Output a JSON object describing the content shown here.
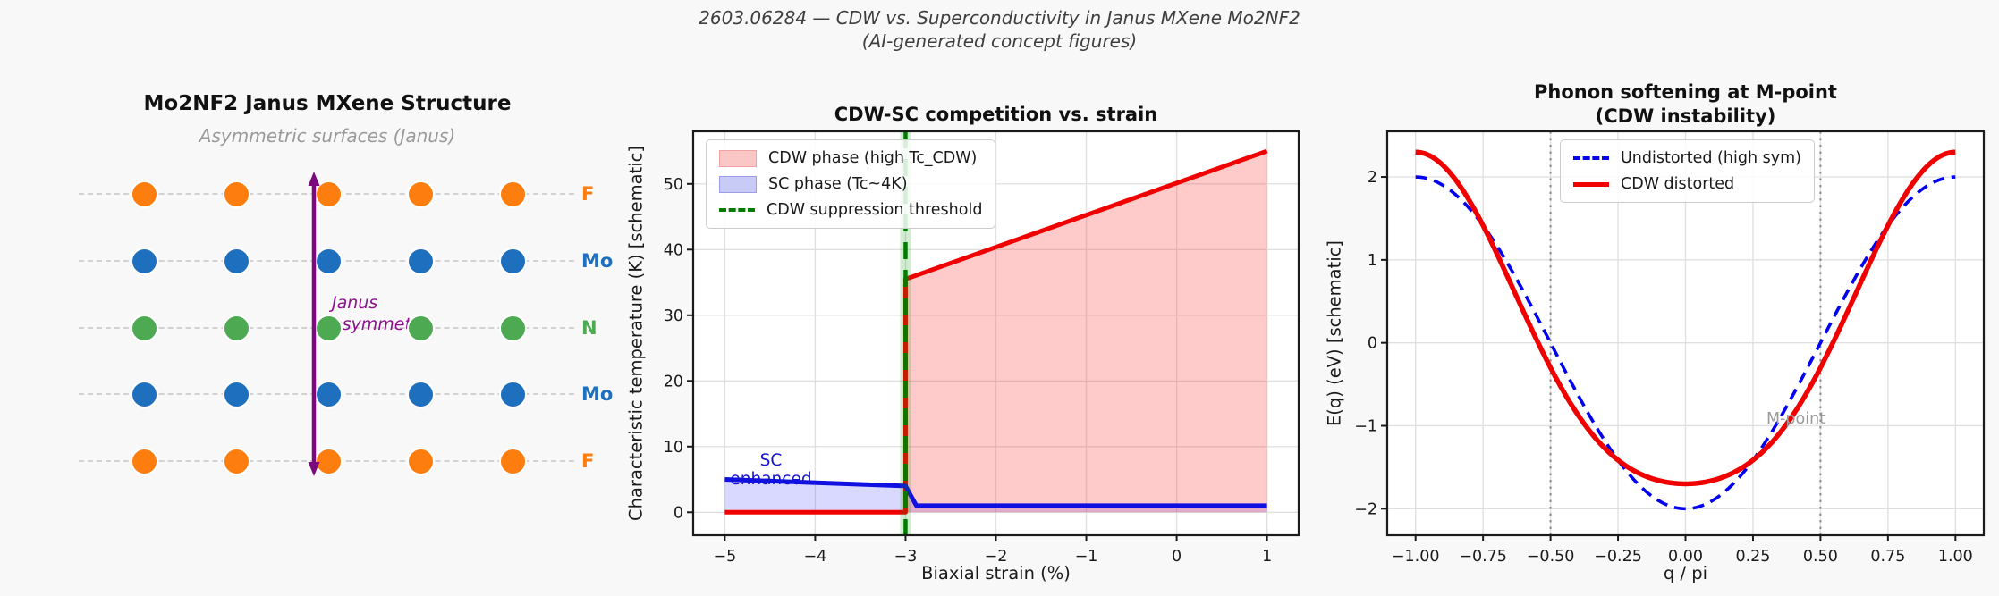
{
  "header": {
    "line1": "2603.06284 — CDW vs. Superconductivity in Janus MXene Mo2NF2",
    "line2": "(AI-generated concept figures)"
  },
  "structure_panel": {
    "title": "Mo2NF2 Janus MXene Structure",
    "subtitle": "Asymmetric surfaces (Janus)",
    "annotation_line1": "Janus",
    "annotation_line2": "asymmetry",
    "annotation_color": "#8d118d",
    "arrow_color": "#7c0a7c",
    "columns": 5,
    "rows": [
      {
        "label": "F",
        "color": "#fd7e0e"
      },
      {
        "label": "Mo",
        "color": "#1f6fbf"
      },
      {
        "label": "N",
        "color": "#4daa53"
      },
      {
        "label": "Mo",
        "color": "#1f6fbf"
      },
      {
        "label": "F",
        "color": "#fd7e0e"
      }
    ]
  },
  "chart_data": [
    {
      "type": "area",
      "title": "CDW-SC competition vs. strain",
      "xlabel": "Biaxial strain (%)",
      "ylabel": "Characteristic temperature (K) [schematic]",
      "xlim": [
        -5.35,
        1.35
      ],
      "ylim": [
        -3.5,
        58
      ],
      "grid": true,
      "x_tick_values": [
        -5,
        -4,
        -3,
        -2,
        -1,
        0,
        1
      ],
      "x_tick_labels": [
        "−5",
        "−4",
        "−3",
        "−2",
        "−1",
        "0",
        "1"
      ],
      "y_tick_values": [
        0,
        10,
        20,
        30,
        40,
        50
      ],
      "y_tick_labels": [
        "0",
        "10",
        "20",
        "30",
        "40",
        "50"
      ],
      "series": [
        {
          "name": "SC phase fill",
          "kind": "fill",
          "fill": "rgba(80,80,255,0.22)",
          "points": [
            [
              -5,
              5
            ],
            [
              -3,
              4
            ],
            [
              -2.88,
              1
            ],
            [
              1,
              1
            ],
            [
              1,
              0
            ],
            [
              -5,
              0
            ]
          ]
        },
        {
          "name": "CDW phase fill",
          "kind": "fill",
          "fill": "rgba(255,45,45,0.25)",
          "points": [
            [
              -3,
              0
            ],
            [
              -3,
              35.5
            ],
            [
              1,
              55
            ],
            [
              1,
              0
            ]
          ]
        },
        {
          "name": "CDW phase (high Tc_CDW)",
          "kind": "line",
          "color": "#f10000",
          "width": 5,
          "points": [
            [
              -5,
              0
            ],
            [
              -3,
              0
            ],
            [
              -3,
              35.5
            ],
            [
              1,
              55
            ]
          ]
        },
        {
          "name": "SC phase (Tc~4K)",
          "kind": "line",
          "color": "#1010e2",
          "width": 5,
          "points": [
            [
              -5,
              5
            ],
            [
              -3,
              4
            ],
            [
              -2.88,
              1
            ],
            [
              1,
              1
            ]
          ]
        }
      ],
      "vlines": [
        {
          "name": "CDW suppression threshold",
          "x": -3,
          "color": "#007d00",
          "width": 4.5,
          "dash": "19 12",
          "halo_color": "rgba(0,150,0,0.18)",
          "halo_width": 12,
          "layer": "front"
        }
      ],
      "legend": {
        "position": "upper left",
        "items": [
          {
            "label": "CDW phase (high Tc_CDW)",
            "swatch": "patch",
            "fill": "#fbc6c6",
            "border": "#f2a2a2"
          },
          {
            "label": "SC phase (Tc~4K)",
            "swatch": "patch",
            "fill": "#c8cbf6",
            "border": "#9a9ce8"
          },
          {
            "label": "CDW suppression threshold",
            "swatch": "dash",
            "color": "#007d00"
          }
        ]
      },
      "annotation": {
        "line1": "SC",
        "line2": "enhanced",
        "color": "#1414d2",
        "x": -4.5,
        "y": 6
      }
    },
    {
      "type": "line",
      "title_line1": "Phonon softening at M-point",
      "title_line2": "(CDW instability)",
      "xlabel": "q / pi",
      "ylabel": "E(q) (eV) [schematic]",
      "xlim": [
        -1.105,
        1.105
      ],
      "ylim": [
        -2.32,
        2.55
      ],
      "grid": true,
      "x_tick_values": [
        -1,
        -0.75,
        -0.5,
        -0.25,
        0,
        0.25,
        0.5,
        0.75,
        1
      ],
      "x_tick_labels": [
        "−1.00",
        "−0.75",
        "−0.50",
        "−0.25",
        "0.00",
        "0.25",
        "0.50",
        "0.75",
        "1.00"
      ],
      "y_tick_values": [
        -2,
        -1,
        0,
        1,
        2
      ],
      "y_tick_labels": [
        "−2",
        "−1",
        "0",
        "1",
        "2"
      ],
      "series": [
        {
          "name": "Undistorted (high sym)",
          "kind": "cos",
          "cos_pi": -2,
          "cos_2pi": 0,
          "x_range": [
            -1,
            1
          ],
          "color": "#0202ee",
          "width": 3.6,
          "dash": "13 8",
          "sample_x": [
            -1,
            -0.75,
            -0.5,
            -0.25,
            0,
            0.25,
            0.5,
            0.75,
            1
          ],
          "sample_y": [
            2,
            1.41,
            0,
            -1.41,
            -2,
            -1.41,
            0,
            1.41,
            2
          ]
        },
        {
          "name": "CDW distorted",
          "kind": "cos",
          "cos_pi": -2,
          "cos_2pi": 0.3,
          "x_range": [
            -1,
            1
          ],
          "color": "#f10000",
          "width": 5.5,
          "sample_x": [
            -1,
            -0.75,
            -0.5,
            -0.25,
            0,
            0.25,
            0.5,
            0.75,
            1
          ],
          "sample_y": [
            2.3,
            1.41,
            -0.3,
            -1.41,
            -1.7,
            -1.41,
            -0.3,
            1.41,
            2.3
          ]
        }
      ],
      "vlines": [
        {
          "name": "M-point marker left",
          "x": -0.5,
          "color": "#8a8a8a",
          "width": 2,
          "dash": "2.5 5",
          "layer": "back"
        },
        {
          "name": "M-point marker right",
          "x": 0.5,
          "color": "#8a8a8a",
          "width": 2,
          "dash": "2.5 5",
          "layer": "back"
        }
      ],
      "legend": {
        "position": "upper center",
        "items": [
          {
            "label": "Undistorted (high sym)",
            "swatch": "dash",
            "color": "#0202ee"
          },
          {
            "label": "CDW distorted",
            "swatch": "line",
            "color": "#f10000"
          }
        ]
      },
      "annotation": {
        "text": "M-point",
        "color": "#9b9b9b"
      }
    }
  ]
}
